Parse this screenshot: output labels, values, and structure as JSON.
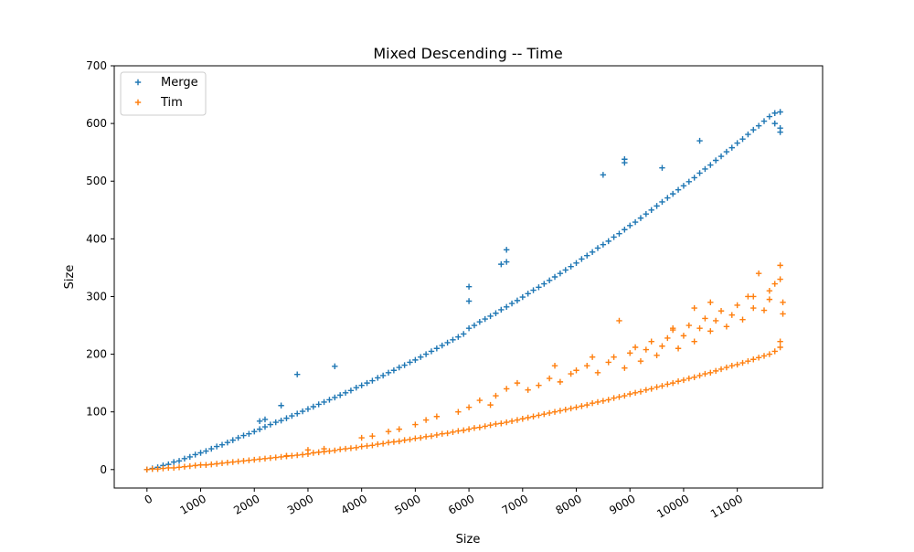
{
  "chart_data": {
    "type": "scatter",
    "title": "Mixed Descending -- Time",
    "xlabel": "Size",
    "ylabel": "Size",
    "xlim": [
      -610,
      12590
    ],
    "ylim": [
      -32,
      700
    ],
    "xticks": [
      0,
      1000,
      2000,
      3000,
      4000,
      5000,
      6000,
      7000,
      8000,
      9000,
      10000,
      11000
    ],
    "yticks": [
      0,
      100,
      200,
      300,
      400,
      500,
      600,
      700
    ],
    "marker": "+",
    "legend": "top-left",
    "grid": false,
    "series": [
      {
        "name": "Merge",
        "color": "#1f77b4",
        "points": [
          [
            0,
            0
          ],
          [
            100,
            2
          ],
          [
            200,
            4
          ],
          [
            300,
            7
          ],
          [
            400,
            9
          ],
          [
            500,
            13
          ],
          [
            600,
            15
          ],
          [
            700,
            19
          ],
          [
            800,
            22
          ],
          [
            900,
            26
          ],
          [
            1000,
            29
          ],
          [
            1100,
            32
          ],
          [
            1200,
            36
          ],
          [
            1300,
            40
          ],
          [
            1400,
            43
          ],
          [
            1500,
            47
          ],
          [
            1600,
            51
          ],
          [
            1700,
            55
          ],
          [
            1800,
            59
          ],
          [
            1900,
            62
          ],
          [
            2000,
            66
          ],
          [
            2100,
            70
          ],
          [
            2200,
            74
          ],
          [
            2300,
            78
          ],
          [
            2400,
            82
          ],
          [
            2500,
            85
          ],
          [
            2600,
            89
          ],
          [
            2700,
            93
          ],
          [
            2800,
            97
          ],
          [
            2900,
            101
          ],
          [
            3000,
            105
          ],
          [
            3100,
            109
          ],
          [
            3200,
            113
          ],
          [
            3300,
            117
          ],
          [
            3400,
            121
          ],
          [
            3500,
            125
          ],
          [
            3600,
            129
          ],
          [
            3700,
            133
          ],
          [
            3800,
            137
          ],
          [
            3900,
            142
          ],
          [
            4000,
            146
          ],
          [
            4100,
            150
          ],
          [
            4200,
            154
          ],
          [
            4300,
            159
          ],
          [
            4400,
            163
          ],
          [
            4500,
            168
          ],
          [
            4600,
            172
          ],
          [
            4700,
            177
          ],
          [
            4800,
            181
          ],
          [
            4900,
            186
          ],
          [
            5000,
            190
          ],
          [
            5100,
            195
          ],
          [
            5200,
            200
          ],
          [
            5300,
            205
          ],
          [
            5400,
            210
          ],
          [
            5500,
            215
          ],
          [
            5600,
            220
          ],
          [
            5700,
            225
          ],
          [
            5800,
            230
          ],
          [
            5900,
            235
          ],
          [
            6000,
            245
          ],
          [
            6100,
            250
          ],
          [
            6200,
            256
          ],
          [
            6300,
            261
          ],
          [
            6400,
            266
          ],
          [
            6500,
            271
          ],
          [
            6600,
            277
          ],
          [
            6700,
            282
          ],
          [
            6800,
            288
          ],
          [
            6900,
            293
          ],
          [
            7000,
            299
          ],
          [
            7100,
            305
          ],
          [
            7200,
            311
          ],
          [
            7300,
            316
          ],
          [
            7400,
            322
          ],
          [
            7500,
            328
          ],
          [
            7600,
            334
          ],
          [
            7700,
            340
          ],
          [
            7800,
            346
          ],
          [
            7900,
            352
          ],
          [
            8000,
            358
          ],
          [
            8100,
            365
          ],
          [
            8200,
            371
          ],
          [
            8300,
            377
          ],
          [
            8400,
            384
          ],
          [
            8500,
            390
          ],
          [
            8600,
            396
          ],
          [
            8700,
            403
          ],
          [
            8800,
            409
          ],
          [
            8900,
            416
          ],
          [
            9000,
            423
          ],
          [
            9100,
            429
          ],
          [
            9200,
            436
          ],
          [
            9300,
            443
          ],
          [
            9400,
            450
          ],
          [
            9500,
            457
          ],
          [
            9600,
            464
          ],
          [
            9700,
            471
          ],
          [
            9800,
            478
          ],
          [
            9900,
            485
          ],
          [
            10000,
            492
          ],
          [
            10100,
            499
          ],
          [
            10200,
            506
          ],
          [
            10300,
            514
          ],
          [
            10400,
            521
          ],
          [
            10500,
            528
          ],
          [
            10600,
            536
          ],
          [
            10700,
            543
          ],
          [
            10800,
            551
          ],
          [
            10900,
            558
          ],
          [
            11000,
            566
          ],
          [
            11100,
            573
          ],
          [
            11200,
            581
          ],
          [
            11300,
            589
          ],
          [
            11400,
            596
          ],
          [
            11500,
            604
          ],
          [
            11600,
            612
          ],
          [
            11700,
            618
          ],
          [
            11800,
            620
          ],
          [
            2100,
            84
          ],
          [
            2200,
            87
          ],
          [
            2500,
            111
          ],
          [
            2800,
            165
          ],
          [
            3500,
            179
          ],
          [
            6000,
            317
          ],
          [
            6000,
            292
          ],
          [
            6600,
            356
          ],
          [
            6700,
            381
          ],
          [
            6700,
            360
          ],
          [
            8500,
            511
          ],
          [
            8900,
            538
          ],
          [
            8900,
            532
          ],
          [
            9600,
            523
          ],
          [
            10300,
            570
          ],
          [
            11800,
            585
          ],
          [
            11800,
            592
          ],
          [
            11700,
            600
          ]
        ]
      },
      {
        "name": "Tim",
        "color": "#ff7f0e",
        "points": [
          [
            0,
            0
          ],
          [
            100,
            1
          ],
          [
            200,
            1
          ],
          [
            300,
            2
          ],
          [
            400,
            3
          ],
          [
            500,
            3
          ],
          [
            600,
            4
          ],
          [
            700,
            5
          ],
          [
            800,
            6
          ],
          [
            900,
            7
          ],
          [
            1000,
            8
          ],
          [
            1100,
            8
          ],
          [
            1200,
            9
          ],
          [
            1300,
            10
          ],
          [
            1400,
            11
          ],
          [
            1500,
            12
          ],
          [
            1600,
            13
          ],
          [
            1700,
            14
          ],
          [
            1800,
            15
          ],
          [
            1900,
            16
          ],
          [
            2000,
            17
          ],
          [
            2100,
            18
          ],
          [
            2200,
            19
          ],
          [
            2300,
            20
          ],
          [
            2400,
            21
          ],
          [
            2500,
            22
          ],
          [
            2600,
            23
          ],
          [
            2700,
            24
          ],
          [
            2800,
            25
          ],
          [
            2900,
            26
          ],
          [
            3000,
            27
          ],
          [
            3100,
            29
          ],
          [
            3200,
            30
          ],
          [
            3300,
            31
          ],
          [
            3400,
            32
          ],
          [
            3500,
            33
          ],
          [
            3600,
            35
          ],
          [
            3700,
            36
          ],
          [
            3800,
            37
          ],
          [
            3900,
            38
          ],
          [
            4000,
            40
          ],
          [
            4100,
            41
          ],
          [
            4200,
            42
          ],
          [
            4300,
            44
          ],
          [
            4400,
            45
          ],
          [
            4500,
            47
          ],
          [
            4600,
            48
          ],
          [
            4700,
            49
          ],
          [
            4800,
            51
          ],
          [
            4900,
            52
          ],
          [
            5000,
            54
          ],
          [
            5100,
            55
          ],
          [
            5200,
            57
          ],
          [
            5300,
            58
          ],
          [
            5400,
            60
          ],
          [
            5500,
            62
          ],
          [
            5600,
            63
          ],
          [
            5700,
            65
          ],
          [
            5800,
            67
          ],
          [
            5900,
            68
          ],
          [
            6000,
            70
          ],
          [
            6100,
            72
          ],
          [
            6200,
            73
          ],
          [
            6300,
            75
          ],
          [
            6400,
            77
          ],
          [
            6500,
            79
          ],
          [
            6600,
            80
          ],
          [
            6700,
            82
          ],
          [
            6800,
            84
          ],
          [
            6900,
            86
          ],
          [
            7000,
            88
          ],
          [
            7100,
            90
          ],
          [
            7200,
            92
          ],
          [
            7300,
            94
          ],
          [
            7400,
            96
          ],
          [
            7500,
            98
          ],
          [
            7600,
            100
          ],
          [
            7700,
            102
          ],
          [
            7800,
            104
          ],
          [
            7900,
            106
          ],
          [
            8000,
            108
          ],
          [
            8100,
            110
          ],
          [
            8200,
            112
          ],
          [
            8300,
            115
          ],
          [
            8400,
            117
          ],
          [
            8500,
            119
          ],
          [
            8600,
            121
          ],
          [
            8700,
            124
          ],
          [
            8800,
            126
          ],
          [
            8900,
            128
          ],
          [
            9000,
            131
          ],
          [
            9100,
            133
          ],
          [
            9200,
            135
          ],
          [
            9300,
            138
          ],
          [
            9400,
            140
          ],
          [
            9500,
            143
          ],
          [
            9600,
            145
          ],
          [
            9700,
            148
          ],
          [
            9800,
            150
          ],
          [
            9900,
            153
          ],
          [
            10000,
            155
          ],
          [
            10100,
            158
          ],
          [
            10200,
            160
          ],
          [
            10300,
            163
          ],
          [
            10400,
            166
          ],
          [
            10500,
            168
          ],
          [
            10600,
            171
          ],
          [
            10700,
            174
          ],
          [
            10800,
            177
          ],
          [
            10900,
            180
          ],
          [
            11000,
            182
          ],
          [
            11100,
            185
          ],
          [
            11200,
            188
          ],
          [
            11300,
            191
          ],
          [
            11400,
            194
          ],
          [
            11500,
            197
          ],
          [
            11600,
            200
          ],
          [
            11700,
            205
          ],
          [
            11800,
            212
          ],
          [
            11800,
            222
          ],
          [
            2600,
            24
          ],
          [
            3000,
            34
          ],
          [
            3300,
            36
          ],
          [
            4000,
            55
          ],
          [
            4200,
            58
          ],
          [
            4500,
            66
          ],
          [
            4700,
            70
          ],
          [
            5000,
            78
          ],
          [
            5200,
            86
          ],
          [
            5400,
            92
          ],
          [
            5800,
            100
          ],
          [
            6000,
            108
          ],
          [
            6200,
            120
          ],
          [
            6400,
            112
          ],
          [
            6500,
            128
          ],
          [
            6700,
            140
          ],
          [
            6900,
            150
          ],
          [
            7100,
            138
          ],
          [
            7300,
            146
          ],
          [
            7500,
            158
          ],
          [
            7700,
            152
          ],
          [
            7900,
            166
          ],
          [
            8000,
            172
          ],
          [
            8200,
            180
          ],
          [
            8400,
            168
          ],
          [
            8600,
            186
          ],
          [
            8700,
            195
          ],
          [
            8800,
            258
          ],
          [
            8900,
            176
          ],
          [
            9000,
            202
          ],
          [
            9100,
            212
          ],
          [
            9200,
            188
          ],
          [
            9300,
            208
          ],
          [
            9400,
            222
          ],
          [
            9500,
            198
          ],
          [
            9600,
            214
          ],
          [
            9700,
            228
          ],
          [
            9800,
            242
          ],
          [
            9900,
            210
          ],
          [
            10000,
            232
          ],
          [
            10100,
            250
          ],
          [
            10200,
            222
          ],
          [
            10300,
            245
          ],
          [
            10400,
            262
          ],
          [
            10500,
            240
          ],
          [
            10600,
            258
          ],
          [
            10700,
            275
          ],
          [
            10800,
            248
          ],
          [
            10900,
            268
          ],
          [
            11000,
            285
          ],
          [
            11100,
            260
          ],
          [
            11200,
            300
          ],
          [
            11300,
            280
          ],
          [
            11400,
            340
          ],
          [
            11500,
            276
          ],
          [
            11600,
            310
          ],
          [
            11700,
            322
          ],
          [
            11800,
            354
          ],
          [
            11800,
            330
          ],
          [
            11850,
            290
          ],
          [
            10500,
            290
          ],
          [
            10200,
            280
          ],
          [
            9800,
            245
          ],
          [
            8300,
            195
          ],
          [
            7600,
            180
          ],
          [
            11300,
            300
          ],
          [
            11600,
            295
          ],
          [
            11850,
            270
          ]
        ]
      }
    ]
  }
}
